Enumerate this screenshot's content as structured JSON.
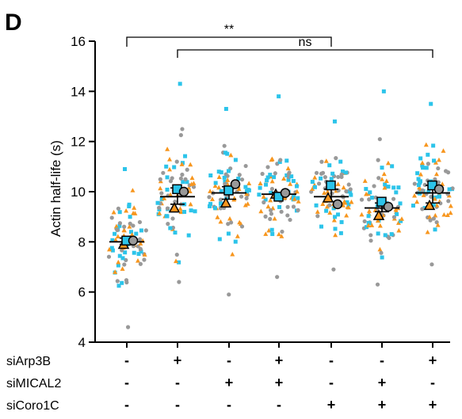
{
  "panel_label": "D",
  "chart_data": {
    "type": "scatter",
    "subtype": "dot-plot with mean ± SEM",
    "ylabel": "Actin half-life (s)",
    "ylim": [
      4,
      16
    ],
    "yticks": [
      4,
      6,
      8,
      10,
      12,
      14,
      16
    ],
    "conditions": [
      {
        "siArp3B": "-",
        "siMICAL2": "-",
        "siCoro1C": "-",
        "mean": 8.0,
        "sem_low": 7.9,
        "sem_high": 8.15,
        "replicate_means": [
          7.9,
          8.05,
          8.05
        ],
        "range": [
          4.6,
          10.9
        ]
      },
      {
        "siArp3B": "+",
        "siMICAL2": "-",
        "siCoro1C": "-",
        "mean": 9.8,
        "sem_low": 9.5,
        "sem_high": 10.15,
        "replicate_means": [
          9.35,
          10.1,
          10.0
        ],
        "range": [
          6.4,
          14.3
        ]
      },
      {
        "siArp3B": "-",
        "siMICAL2": "+",
        "siCoro1C": "-",
        "mean": 9.95,
        "sem_low": 9.7,
        "sem_high": 10.2,
        "replicate_means": [
          9.55,
          10.05,
          10.3
        ],
        "range": [
          5.9,
          13.3
        ]
      },
      {
        "siArp3B": "+",
        "siMICAL2": "+",
        "siCoro1C": "-",
        "mean": 9.9,
        "sem_low": 9.85,
        "sem_high": 9.97,
        "replicate_means": [
          9.9,
          9.8,
          9.95
        ],
        "range": [
          6.6,
          13.8
        ]
      },
      {
        "siArp3B": "-",
        "siMICAL2": "-",
        "siCoro1C": "+",
        "mean": 9.8,
        "sem_low": 9.6,
        "sem_high": 10.1,
        "replicate_means": [
          9.75,
          10.25,
          9.5
        ],
        "range": [
          6.9,
          12.8
        ]
      },
      {
        "siArp3B": "-",
        "siMICAL2": "+",
        "siCoro1C": "+",
        "mean": 9.35,
        "sem_low": 9.2,
        "sem_high": 9.55,
        "replicate_means": [
          9.05,
          9.6,
          9.4
        ],
        "range": [
          6.3,
          14.0
        ]
      },
      {
        "siArp3B": "+",
        "siMICAL2": "-",
        "siCoro1C": "+",
        "mean": 9.95,
        "sem_low": 9.55,
        "sem_high": 10.25,
        "replicate_means": [
          9.45,
          10.25,
          10.1
        ],
        "range": [
          7.1,
          13.5
        ]
      }
    ],
    "rows": [
      {
        "label": "siArp3B",
        "values": [
          "-",
          "+",
          "-",
          "+",
          "-",
          "-",
          "+"
        ]
      },
      {
        "label": "siMICAL2",
        "values": [
          "-",
          "-",
          "+",
          "+",
          "-",
          "+",
          "-"
        ]
      },
      {
        "label": "siCoro1C",
        "values": [
          "-",
          "-",
          "-",
          "-",
          "+",
          "+",
          "+"
        ]
      }
    ],
    "significance": [
      {
        "from": 1,
        "to": 5,
        "label": "**"
      },
      {
        "from": 2,
        "to": 7,
        "label": "ns"
      }
    ],
    "colors": {
      "gray": "#999999",
      "cyan": "#2cc4ea",
      "orange": "#f7961e",
      "axis": "#000000"
    }
  }
}
